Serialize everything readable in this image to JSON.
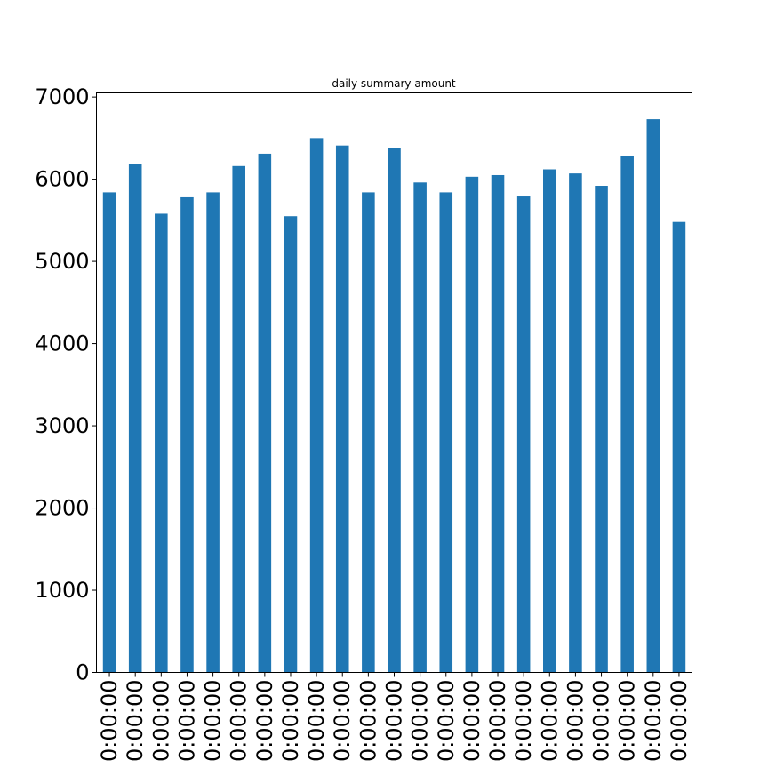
{
  "chart_data": {
    "type": "bar",
    "title": "daily summary amount",
    "xlabel": "",
    "ylabel": "",
    "ylim": [
      0,
      7050
    ],
    "yticks": [
      0,
      1000,
      2000,
      3000,
      4000,
      5000,
      6000,
      7000
    ],
    "ytick_labels": [
      "0",
      "1000",
      "2000",
      "3000",
      "4000",
      "5000",
      "6000",
      "7000"
    ],
    "grid": false,
    "legend": "none",
    "bar_color": "#1f77b4",
    "categories": [
      "0:00:00",
      "0:00:00",
      "0:00:00",
      "0:00:00",
      "0:00:00",
      "0:00:00",
      "0:00:00",
      "0:00:00",
      "0:00:00",
      "0:00:00",
      "0:00:00",
      "0:00:00",
      "0:00:00",
      "0:00:00",
      "0:00:00",
      "0:00:00",
      "0:00:00",
      "0:00:00",
      "0:00:00",
      "0:00:00",
      "0:00:00",
      "0:00:00"
    ],
    "values": [
      5840,
      6180,
      5580,
      5780,
      5840,
      6160,
      6310,
      5550,
      6500,
      6410,
      5840,
      6380,
      5960,
      5840,
      6030,
      6050,
      5790,
      6120,
      6070,
      5920,
      6280,
      6730
    ],
    "extra_values": [
      5480
    ]
  }
}
